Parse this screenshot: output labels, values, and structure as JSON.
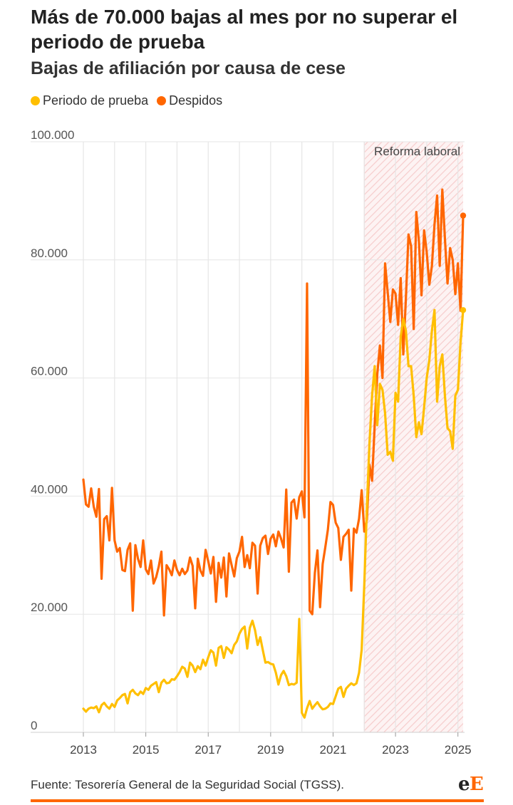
{
  "header": {
    "title": "Más de 70.000 bajas al mes por no superar el periodo de prueba",
    "subtitle": "Bajas de afiliación por causa de cese"
  },
  "legend": [
    {
      "label": "Periodo de prueba",
      "color": "#FFBF00"
    },
    {
      "label": "Despidos",
      "color": "#FF6600"
    }
  ],
  "footer": {
    "source": "Fuente: Tesorería General de la Seguridad Social (TGSS).",
    "logo_text": "eE"
  },
  "colors": {
    "accent": "#FF6600",
    "shade": "#F6CCCC",
    "grid": "#E6E6E6"
  },
  "chart_data": {
    "type": "line",
    "title": "Más de 70.000 bajas al mes por no superar el periodo de prueba",
    "subtitle": "Bajas de afiliación por causa de cese",
    "x_unit": "monthly",
    "x_range": [
      "2013-01",
      "2025-05"
    ],
    "ylim": [
      0,
      100000
    ],
    "y_ticks": [
      0,
      20000,
      40000,
      60000,
      80000,
      100000
    ],
    "y_tick_labels": [
      "0",
      "20.000",
      "40.000",
      "60.000",
      "80.000",
      "100.000"
    ],
    "x_tick_labels": [
      "2013",
      "2015",
      "2017",
      "2019",
      "2021",
      "2023",
      "2025"
    ],
    "grid": true,
    "legend_position": "top-left",
    "annotation": {
      "label": "Reforma laboral",
      "from": "2022-01",
      "to": "2025-05"
    },
    "series": [
      {
        "name": "Periodo de prueba",
        "color": "#FFBF00",
        "values": [
          4000,
          3500,
          4000,
          4200,
          4100,
          4400,
          3400,
          4600,
          5000,
          4400,
          4000,
          4800,
          4300,
          5400,
          5800,
          6300,
          6500,
          4900,
          6800,
          7200,
          6600,
          6300,
          6900,
          6500,
          7500,
          7200,
          7900,
          8200,
          8500,
          6800,
          8400,
          8900,
          8300,
          8400,
          9000,
          8900,
          9500,
          10200,
          11100,
          10800,
          9400,
          11800,
          11300,
          10200,
          11200,
          10700,
          12300,
          11300,
          12700,
          13900,
          13500,
          11300,
          14300,
          14600,
          12600,
          14400,
          14000,
          13400,
          14800,
          15400,
          16700,
          17500,
          17900,
          14200,
          17700,
          18900,
          17300,
          14800,
          16100,
          13900,
          11800,
          11900,
          11600,
          11500,
          10100,
          8100,
          9700,
          10400,
          9500,
          8000,
          8200,
          8100,
          8400,
          19200,
          3300,
          2500,
          4100,
          5300,
          4000,
          4600,
          5100,
          4400,
          3900,
          4000,
          4300,
          4900,
          4800,
          6100,
          7400,
          7700,
          6000,
          7400,
          7900,
          8300,
          8000,
          8300,
          10100,
          14000,
          25000,
          38000,
          49000,
          57000,
          62000,
          52000,
          59000,
          58000,
          54000,
          47000,
          47500,
          46000,
          57500,
          56000,
          67000,
          70000,
          68000,
          62000,
          62000,
          57000,
          50000,
          52500,
          50500,
          55000,
          60000,
          63000,
          68000,
          71500,
          56000,
          62000,
          64000,
          57000,
          51500,
          51000,
          48000,
          57000,
          58000,
          66000,
          71500
        ]
      },
      {
        "name": "Despidos",
        "color": "#FF6600",
        "values": [
          42800,
          38600,
          38200,
          41300,
          38200,
          36500,
          41200,
          26000,
          36100,
          36600,
          32500,
          41400,
          32500,
          30600,
          31200,
          27500,
          27300,
          30900,
          32000,
          20600,
          31700,
          29400,
          28000,
          32500,
          27600,
          26800,
          29100,
          25200,
          26300,
          28100,
          30600,
          19800,
          28300,
          27600,
          26600,
          29100,
          27500,
          26600,
          27700,
          26800,
          27400,
          29600,
          28200,
          21000,
          29400,
          27400,
          26500,
          30900,
          29000,
          26900,
          29700,
          22100,
          28700,
          26200,
          29600,
          23000,
          30300,
          28300,
          26400,
          29500,
          30600,
          33100,
          28000,
          30000,
          27800,
          32100,
          31600,
          23500,
          31600,
          32900,
          33300,
          30200,
          32800,
          33500,
          31500,
          34000,
          32800,
          31300,
          41100,
          27200,
          38900,
          39400,
          36200,
          39800,
          40800,
          36400,
          76000,
          20600,
          20000,
          27000,
          30800,
          21200,
          28500,
          31300,
          34300,
          39000,
          38500,
          35500,
          34600,
          29200,
          33100,
          33600,
          34300,
          24000,
          34500,
          33800,
          36200,
          41000,
          34000,
          36000,
          45300,
          42600,
          52000,
          60700,
          65500,
          60000,
          79400,
          74500,
          69500,
          75000,
          74300,
          69000,
          76900,
          64000,
          73500,
          84300,
          82300,
          68300,
          88100,
          83200,
          74000,
          85000,
          81300,
          75800,
          79000,
          86000,
          90900,
          79000,
          91900,
          83600,
          76000,
          82000,
          80000,
          74200,
          79400,
          71400,
          87500
        ]
      }
    ]
  }
}
